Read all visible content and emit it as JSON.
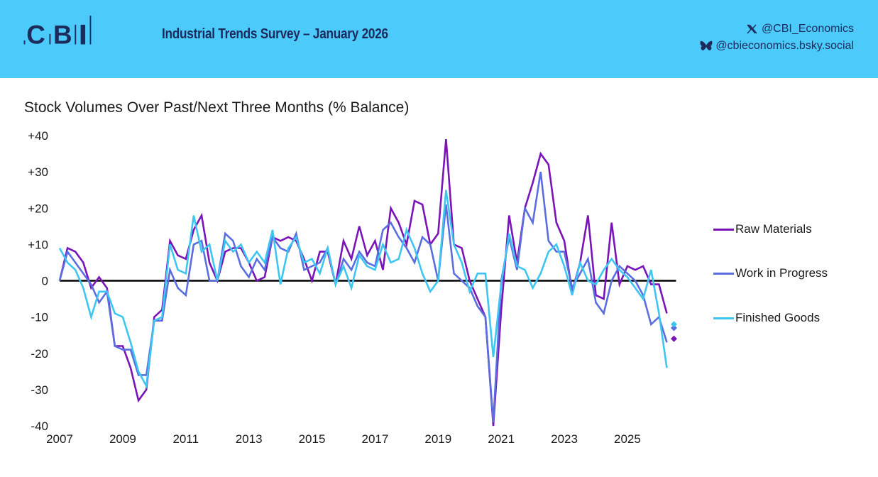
{
  "header": {
    "logo_text": "CBI",
    "report_title": "Industrial Trends Survey – January 2026",
    "social": [
      {
        "icon": "x-icon",
        "handle": "@CBI_Economics"
      },
      {
        "icon": "bluesky-butterfly-icon",
        "handle": "@cbieconomics.bsky.social"
      }
    ],
    "background_color": "#4ccbfb",
    "text_color": "#1c2a5c"
  },
  "chart_data": {
    "type": "line",
    "title": "Stock Volumes Over Past/Next Three Months (% Balance)",
    "xlabel": "",
    "ylabel": "",
    "frequency": "quarterly",
    "x_start": "2007 Q1",
    "x_end": "2026 Q1",
    "ylim": [
      -40,
      40
    ],
    "y_ticks": [
      "+40",
      "+30",
      "+20",
      "+10",
      "0",
      "-10",
      "-20",
      "-30",
      "-40"
    ],
    "y_tick_values": [
      40,
      30,
      20,
      10,
      0,
      -10,
      -20,
      -30,
      -40
    ],
    "x_ticks": [
      "2007",
      "2009",
      "2011",
      "2013",
      "2015",
      "2017",
      "2019",
      "2021",
      "2023",
      "2025"
    ],
    "x_tick_values": [
      2007,
      2009,
      2011,
      2013,
      2015,
      2017,
      2019,
      2021,
      2023,
      2025
    ],
    "zero_line": true,
    "grid": false,
    "legend_position": "right",
    "series": [
      {
        "name": "Raw Materials",
        "color": "#7b14b8",
        "values": [
          0,
          9,
          8,
          5,
          -2,
          1,
          -2,
          -18,
          -18,
          -24,
          -33,
          -30,
          -10,
          -8,
          11,
          7,
          6,
          14,
          18,
          5,
          0,
          8,
          9,
          9,
          5,
          0,
          1,
          12,
          11,
          12,
          11,
          6,
          0,
          8,
          8,
          -1,
          11,
          6,
          15,
          7,
          11,
          3,
          20,
          16,
          10,
          22,
          21,
          10,
          13,
          39,
          10,
          9,
          0,
          -5,
          -10,
          -40,
          -8,
          18,
          5,
          20,
          27,
          35,
          32,
          16,
          11,
          -3,
          5,
          18,
          -4,
          -5,
          16,
          -1,
          4,
          3,
          4,
          -1,
          -1,
          -9
        ],
        "forecast": -16
      },
      {
        "name": "Work in Progress",
        "color": "#5b6ee0",
        "values": [
          0,
          8,
          5,
          2,
          -1,
          -6,
          -3,
          -18,
          -19,
          -19,
          -26,
          -26,
          -11,
          -11,
          3,
          -2,
          -4,
          10,
          11,
          0,
          0,
          13,
          11,
          4,
          1,
          6,
          3,
          12,
          9,
          8,
          13,
          3,
          4,
          5,
          9,
          -1,
          6,
          3,
          8,
          5,
          4,
          14,
          16,
          12,
          9,
          5,
          12,
          10,
          0,
          21,
          2,
          0,
          -2,
          -7,
          -10,
          -39,
          0,
          12,
          3,
          20,
          16,
          30,
          11,
          8,
          8,
          -2,
          2,
          6,
          -6,
          -9,
          0,
          4,
          2,
          0,
          -4,
          -12,
          -10,
          -17
        ],
        "forecast": -13
      },
      {
        "name": "Finished Goods",
        "color": "#3ec6f2",
        "values": [
          9,
          5,
          3,
          -2,
          -10,
          -3,
          -3,
          -9,
          -10,
          -17,
          -25,
          -29,
          -11,
          -10,
          10,
          3,
          2,
          18,
          8,
          10,
          0,
          11,
          8,
          10,
          5,
          8,
          5,
          14,
          -1,
          9,
          12,
          5,
          6,
          2,
          9,
          -1,
          4,
          -2,
          7,
          4,
          3,
          10,
          5,
          6,
          14,
          9,
          2,
          -3,
          0,
          25,
          10,
          5,
          -3,
          2,
          2,
          -21,
          -1,
          13,
          4,
          3,
          -2,
          2,
          8,
          10,
          4,
          -4,
          5,
          0,
          -1,
          3,
          6,
          3,
          1,
          -2,
          -5,
          3,
          -9,
          -24
        ],
        "forecast": -12
      }
    ]
  }
}
